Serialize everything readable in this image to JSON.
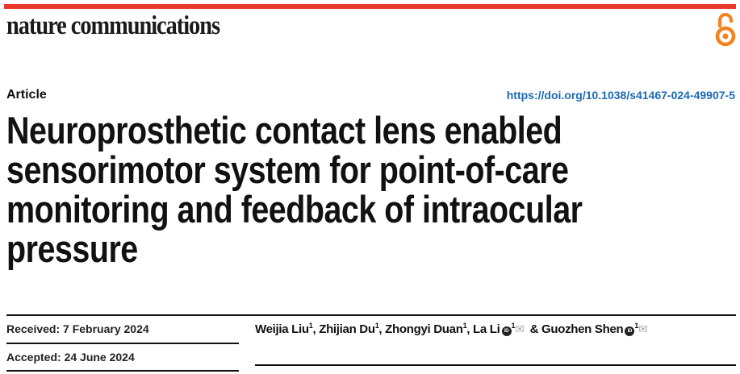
{
  "header": {
    "journal": "nature communications",
    "accent_color": "#e8382a",
    "open_access_icon": "open-access-lock-icon",
    "open_access_color": "#f58220"
  },
  "article": {
    "type": "Article",
    "doi": "https://doi.org/10.1038/s41467-024-49907-5",
    "title_lines": [
      "Neuroprosthetic contact lens enabled",
      "sensorimotor system for point-of-care",
      "monitoring and feedback of intraocular",
      "pressure"
    ],
    "received": "Received: 7 February 2024",
    "accepted": "Accepted: 24 June 2024",
    "authors": [
      {
        "name": "Weijia Liu",
        "aff": "1",
        "sep": ", "
      },
      {
        "name": "Zhijian Du",
        "aff": "1",
        "sep": ", "
      },
      {
        "name": "Zhongyi Duan",
        "aff": "1",
        "sep": ", "
      },
      {
        "name": "La Li",
        "aff": "1",
        "sep": " & "
      },
      {
        "name": "Guozhen Shen",
        "aff": "1",
        "sep": ""
      }
    ]
  }
}
